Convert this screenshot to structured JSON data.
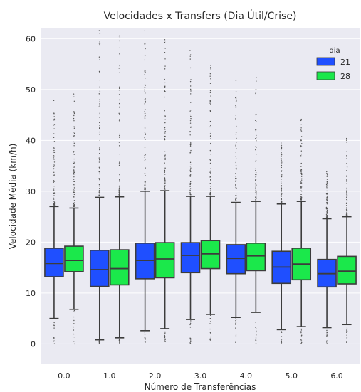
{
  "chart_data": {
    "type": "boxplot",
    "title": "Velocidades x Transfers (Dia Útil/Crise)",
    "xlabel": "Número de Transferências",
    "ylabel": "Velocidade Média (km/h)",
    "categories": [
      "0.0",
      "1.0",
      "2.0",
      "3.0",
      "4.0",
      "5.0",
      "6.0"
    ],
    "ylim": [
      -4,
      62
    ],
    "yticks": [
      0,
      10,
      20,
      30,
      40,
      50,
      60
    ],
    "grid": true,
    "legend": {
      "title": "dia",
      "position": "top-right"
    },
    "series": [
      {
        "name": "21",
        "color": "#1f4fff",
        "boxes": [
          {
            "whislo": 5.0,
            "q1": 13.2,
            "med": 15.8,
            "q3": 18.8,
            "whishi": 27.0,
            "outlier_max": 48.0
          },
          {
            "whislo": 0.8,
            "q1": 11.3,
            "med": 14.6,
            "q3": 18.4,
            "whishi": 28.8,
            "outlier_max": 62.0
          },
          {
            "whislo": 2.6,
            "q1": 12.8,
            "med": 16.4,
            "q3": 19.8,
            "whishi": 30.0,
            "outlier_max": 62.0
          },
          {
            "whislo": 4.8,
            "q1": 14.0,
            "med": 17.4,
            "q3": 19.9,
            "whishi": 29.0,
            "outlier_max": 58.0
          },
          {
            "whislo": 5.2,
            "q1": 13.8,
            "med": 16.8,
            "q3": 19.5,
            "whishi": 27.8,
            "outlier_max": 52.0
          },
          {
            "whislo": 2.8,
            "q1": 11.9,
            "med": 15.1,
            "q3": 18.2,
            "whishi": 27.5,
            "outlier_max": 40.0
          },
          {
            "whislo": 3.2,
            "q1": 11.2,
            "med": 13.8,
            "q3": 16.6,
            "whishi": 24.6,
            "outlier_max": 34.0
          }
        ]
      },
      {
        "name": "28",
        "color": "#1be84b",
        "boxes": [
          {
            "whislo": 6.8,
            "q1": 14.2,
            "med": 16.4,
            "q3": 19.2,
            "whishi": 26.7,
            "outlier_max": 50.0
          },
          {
            "whislo": 1.2,
            "q1": 11.6,
            "med": 14.8,
            "q3": 18.5,
            "whishi": 28.9,
            "outlier_max": 62.0
          },
          {
            "whislo": 3.0,
            "q1": 13.0,
            "med": 16.7,
            "q3": 19.9,
            "whishi": 30.1,
            "outlier_max": 61.0
          },
          {
            "whislo": 5.8,
            "q1": 14.8,
            "med": 17.7,
            "q3": 20.3,
            "whishi": 29.0,
            "outlier_max": 55.0
          },
          {
            "whislo": 6.2,
            "q1": 14.4,
            "med": 17.3,
            "q3": 19.8,
            "whishi": 28.0,
            "outlier_max": 53.0
          },
          {
            "whislo": 3.4,
            "q1": 12.6,
            "med": 15.7,
            "q3": 18.8,
            "whishi": 28.0,
            "outlier_max": 45.0
          },
          {
            "whislo": 3.8,
            "q1": 11.8,
            "med": 14.3,
            "q3": 17.2,
            "whishi": 25.0,
            "outlier_max": 40.5
          }
        ]
      }
    ]
  }
}
